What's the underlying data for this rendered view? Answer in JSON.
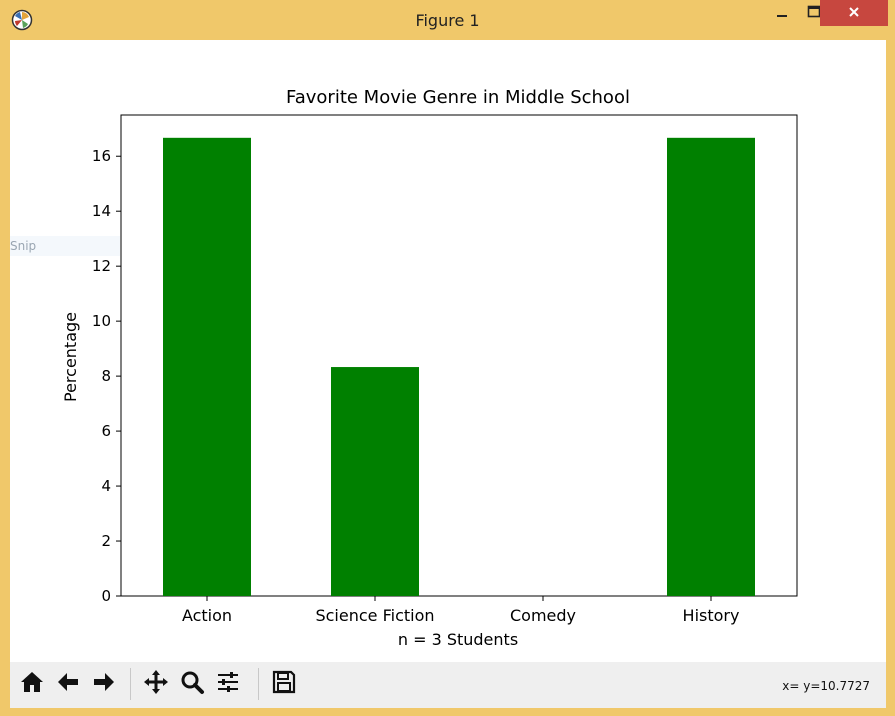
{
  "window": {
    "title": "Figure 1",
    "icons": {
      "app": "matplotlib-icon",
      "minimize": "minimize-icon",
      "maximize": "maximize-icon",
      "close": "close-icon"
    },
    "frame_color": "#f0c86a",
    "close_color": "#c7473f"
  },
  "background_overlay": {
    "text": "Snip"
  },
  "toolbar": {
    "buttons": [
      {
        "name": "home-button",
        "icon": "home-icon"
      },
      {
        "name": "back-button",
        "icon": "arrow-left-icon"
      },
      {
        "name": "forward-button",
        "icon": "arrow-right-icon"
      },
      {
        "name": "pan-button",
        "icon": "move-icon"
      },
      {
        "name": "zoom-button",
        "icon": "magnifier-icon"
      },
      {
        "name": "configure-subplots-button",
        "icon": "sliders-icon"
      },
      {
        "name": "save-button",
        "icon": "floppy-disk-icon"
      }
    ],
    "coords": "x= y=10.7727"
  },
  "chart_data": {
    "type": "bar",
    "title": "Favorite Movie Genre in Middle School",
    "xlabel": "n = 3 Students",
    "ylabel": "Percentage",
    "categories": [
      "Action",
      "Science Fiction",
      "Comedy",
      "History"
    ],
    "values": [
      16.67,
      8.33,
      0,
      16.67
    ],
    "ylim": [
      0,
      17.5
    ],
    "yticks": [
      0,
      2,
      4,
      6,
      8,
      10,
      12,
      14,
      16
    ],
    "bar_color": "#008000",
    "grid": false
  }
}
